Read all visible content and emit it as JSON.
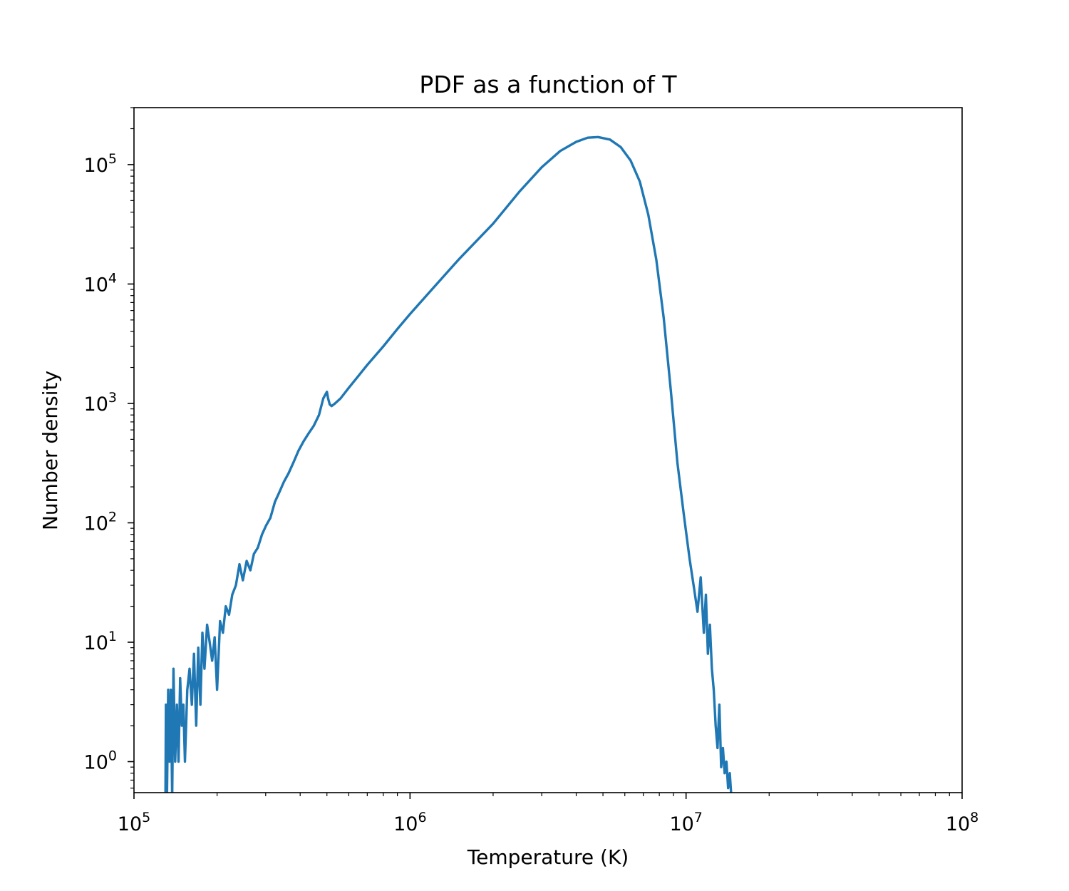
{
  "chart_data": {
    "type": "line",
    "title": "PDF as a function of T",
    "xlabel": "Temperature (K)",
    "ylabel": "Number density",
    "xscale": "log",
    "yscale": "log",
    "xlim": [
      100000,
      100000000
    ],
    "ylim": [
      0.55,
      300000
    ],
    "grid": false,
    "legend": "none",
    "x_ticks": [
      {
        "base": "10",
        "exp": "5"
      },
      {
        "base": "10",
        "exp": "6"
      },
      {
        "base": "10",
        "exp": "7"
      },
      {
        "base": "10",
        "exp": "8"
      }
    ],
    "y_ticks": [
      {
        "base": "10",
        "exp": "0"
      },
      {
        "base": "10",
        "exp": "1"
      },
      {
        "base": "10",
        "exp": "2"
      },
      {
        "base": "10",
        "exp": "3"
      },
      {
        "base": "10",
        "exp": "4"
      },
      {
        "base": "10",
        "exp": "5"
      }
    ],
    "series": [
      {
        "color": "#1f77b4",
        "x": [
          130000,
          130500,
          131500,
          133000,
          134500,
          136000,
          137500,
          139000,
          141000,
          143000,
          145000,
          147000,
          149000,
          151000,
          153000,
          156000,
          159000,
          162000,
          165000,
          168000,
          171000,
          174000,
          177000,
          180000,
          184000,
          188000,
          192000,
          196000,
          200000,
          205000,
          210000,
          215000,
          221000,
          227000,
          234000,
          241000,
          248000,
          256000,
          264000,
          272000,
          281000,
          291000,
          301000,
          312000,
          324000,
          336000,
          349000,
          363000,
          378000,
          394000,
          411000,
          429000,
          448000,
          468000,
          485000,
          500000,
          505000,
          512000,
          520000,
          535000,
          560000,
          600000,
          650000,
          700000,
          800000,
          900000,
          1000000,
          1200000,
          1500000,
          2000000,
          2500000,
          3000000,
          3500000,
          4000000,
          4400000,
          4800000,
          5300000,
          5800000,
          6300000,
          6800000,
          7300000,
          7800000,
          8300000,
          8800000,
          9300000,
          9800000,
          10300000,
          10700000,
          11000000,
          11300000,
          11600000,
          11800000,
          12000000,
          12200000,
          12400000,
          12600000,
          12800000,
          13000000,
          13200000,
          13400000,
          13600000,
          13800000,
          14000000,
          14200000,
          14400000,
          14600000,
          14800000,
          15000000
        ],
        "y": [
          0.4,
          3,
          0.4,
          4,
          1,
          4,
          0.5,
          6,
          1,
          3,
          1,
          5,
          2,
          3,
          1,
          4,
          6,
          3,
          8,
          2,
          9,
          3,
          12,
          6,
          14,
          10,
          7,
          11,
          4,
          15,
          12,
          20,
          17,
          25,
          30,
          45,
          33,
          48,
          40,
          55,
          62,
          80,
          95,
          110,
          150,
          180,
          220,
          260,
          320,
          400,
          480,
          560,
          650,
          800,
          1100,
          1250,
          1100,
          980,
          950,
          1000,
          1100,
          1350,
          1700,
          2100,
          3000,
          4200,
          5600,
          9000,
          16000,
          32000,
          60000,
          95000,
          130000,
          155000,
          168000,
          170000,
          162000,
          140000,
          108000,
          72000,
          38000,
          16000,
          5200,
          1300,
          320,
          120,
          50,
          28,
          18,
          35,
          12,
          25,
          8,
          14,
          6,
          4,
          2,
          1.3,
          3,
          0.9,
          1.3,
          0.8,
          1,
          0.6,
          0.8,
          0.5,
          0.4,
          0.4
        ]
      }
    ]
  }
}
